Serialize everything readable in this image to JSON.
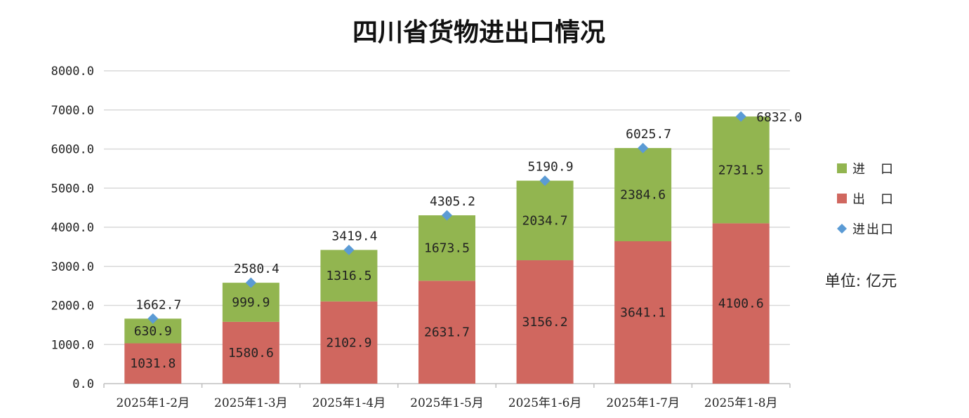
{
  "chart_data": {
    "type": "bar",
    "stacked": true,
    "title": "四川省货物进出口情况",
    "unit_label": "单位: 亿元",
    "categories": [
      "2025年1-2月",
      "2025年1-3月",
      "2025年1-4月",
      "2025年1-5月",
      "2025年1-6月",
      "2025年1-7月",
      "2025年1-8月"
    ],
    "y_ticks": [
      "0.0",
      "1000.0",
      "2000.0",
      "3000.0",
      "4000.0",
      "5000.0",
      "6000.0",
      "7000.0",
      "8000.0"
    ],
    "ylim": [
      0,
      8000
    ],
    "grid": true,
    "legend_position": "right",
    "series": [
      {
        "name": "出　口",
        "kind": "bar",
        "color": "#d0675f",
        "values": [
          1031.8,
          1580.6,
          2102.9,
          2631.7,
          3156.2,
          3641.1,
          4100.6
        ],
        "labels": [
          "1031.8",
          "1580.6",
          "2102.9",
          "2631.7",
          "3156.2",
          "3641.1",
          "4100.6"
        ]
      },
      {
        "name": "进　口",
        "kind": "bar",
        "color": "#92b550",
        "values": [
          630.9,
          999.9,
          1316.5,
          1673.5,
          2034.7,
          2384.6,
          2731.5
        ],
        "labels": [
          "630.9",
          "999.9",
          "1316.5",
          "1673.5",
          "2034.7",
          "2384.6",
          "2731.5"
        ]
      },
      {
        "name": "进出口",
        "kind": "marker",
        "marker": "diamond",
        "color": "#5b9bd5",
        "values": [
          1662.7,
          2580.4,
          3419.4,
          4305.2,
          5190.9,
          6025.7,
          6832.0
        ],
        "labels": [
          "1662.7",
          "2580.4",
          "3419.4",
          "4305.2",
          "5190.9",
          "6025.7",
          "6832.0"
        ]
      }
    ]
  }
}
